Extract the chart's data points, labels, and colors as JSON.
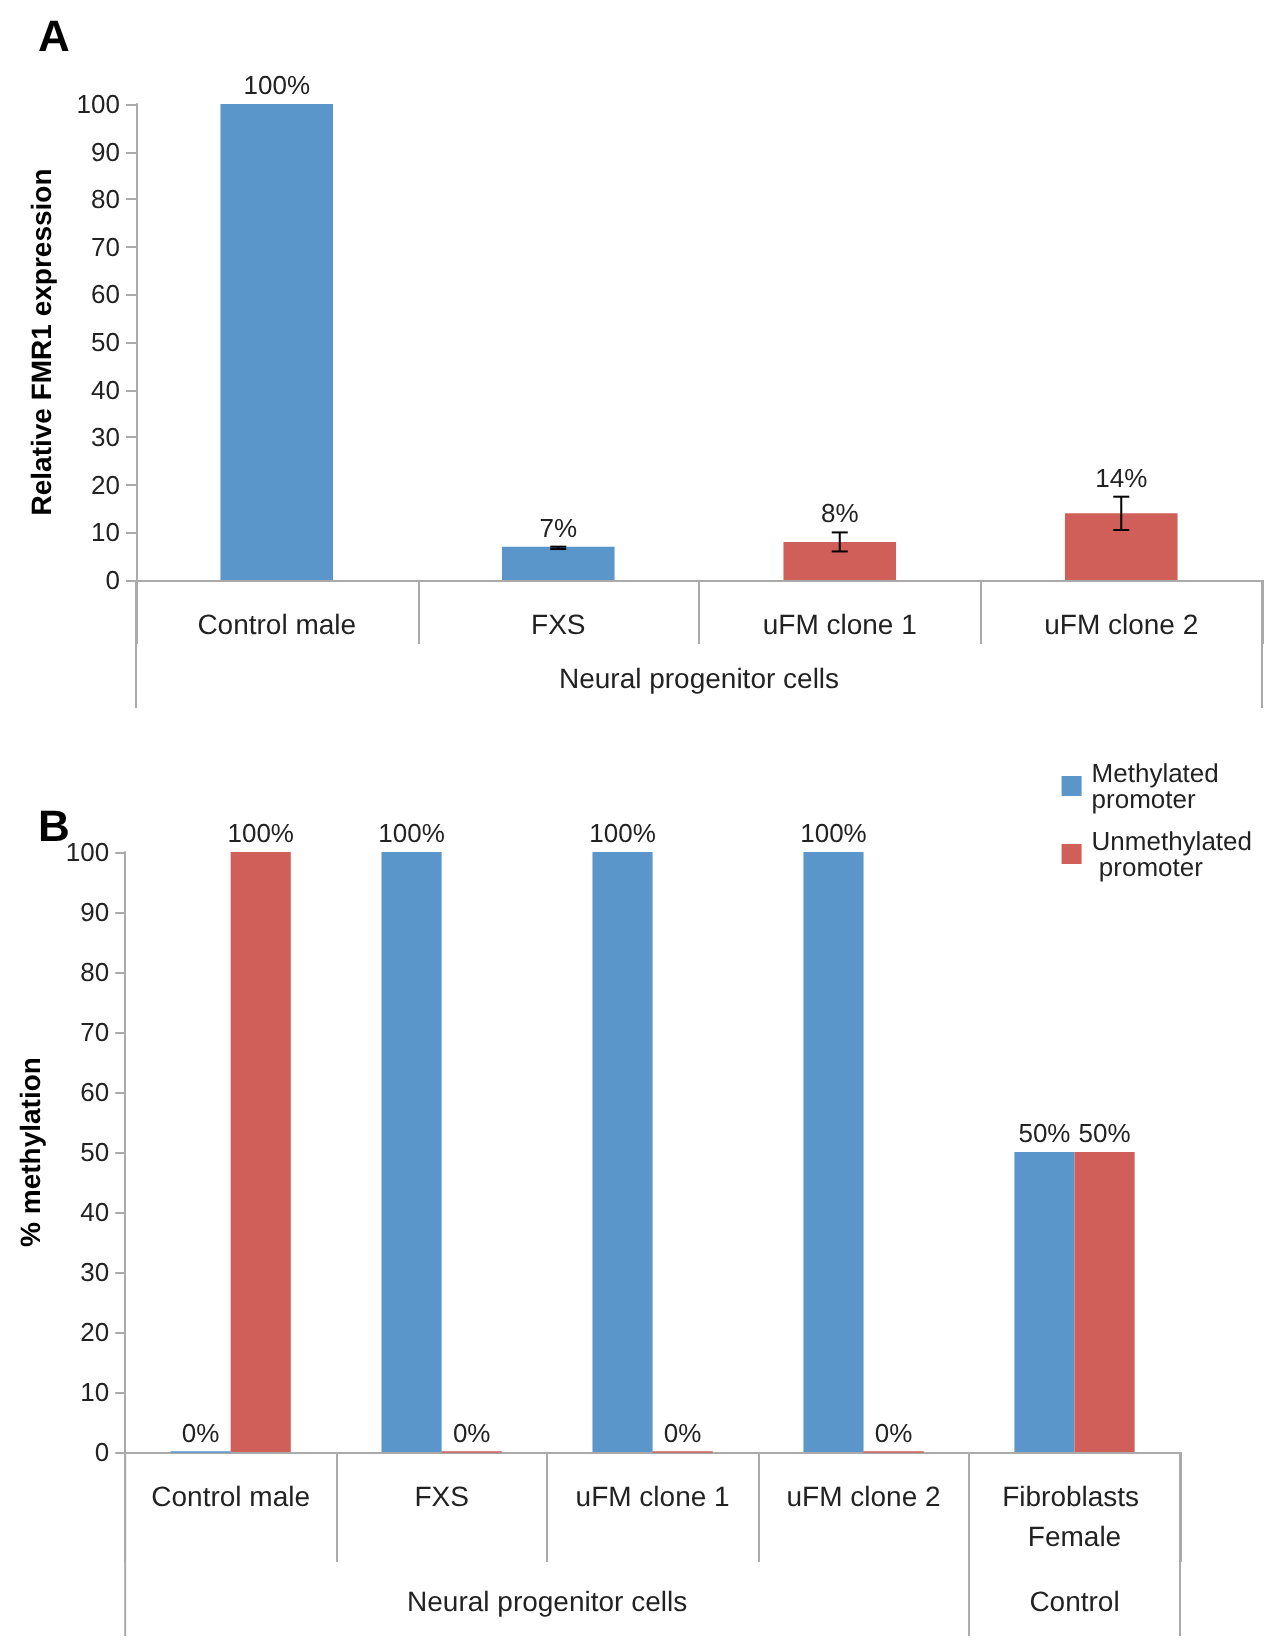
{
  "chart_data": [
    {
      "type": "bar",
      "title": "A",
      "ylabel": "Relative FMR1 expression",
      "categories": [
        "Control male",
        "FXS",
        "uFM clone 1",
        "uFM clone 2"
      ],
      "values": [
        100,
        7,
        8,
        14
      ],
      "colors": [
        "#5b96cb",
        "#5b96cb",
        "#d05f5a",
        "#d05f5a"
      ],
      "value_labels": [
        "100%",
        "7%",
        "8%",
        "14%"
      ],
      "errors": [
        null,
        [
          6.5,
          7
        ],
        [
          6,
          10
        ],
        [
          10.5,
          17.5
        ]
      ],
      "ylim": [
        0,
        100
      ],
      "yticks": [
        0,
        10,
        20,
        30,
        40,
        50,
        60,
        70,
        80,
        90,
        100
      ],
      "annotations": [
        "Neural progenitor cells"
      ]
    },
    {
      "type": "bar",
      "title": "B",
      "ylabel": "% methylation",
      "categories": [
        "Control male",
        "FXS",
        "uFM clone 1",
        "uFM clone 2",
        "Fibroblasts Female"
      ],
      "series": [
        {
          "name": "Methylated promoter",
          "color": "#5b96cb",
          "values": [
            0,
            100,
            100,
            100,
            50
          ],
          "value_labels": [
            "0%",
            "100%",
            "100%",
            "100%",
            "50%"
          ]
        },
        {
          "name": "Unmethylated promoter",
          "color": "#d05f5a",
          "values": [
            100,
            0,
            0,
            0,
            50
          ],
          "value_labels": [
            "100%",
            "0%",
            "0%",
            "0%",
            "50%"
          ]
        }
      ],
      "ylim": [
        0,
        100
      ],
      "yticks": [
        0,
        10,
        20,
        30,
        40,
        50,
        60,
        70,
        80,
        90,
        100
      ],
      "legend": "top right",
      "annotations": [
        "Neural progenitor cells",
        "Control"
      ]
    }
  ]
}
